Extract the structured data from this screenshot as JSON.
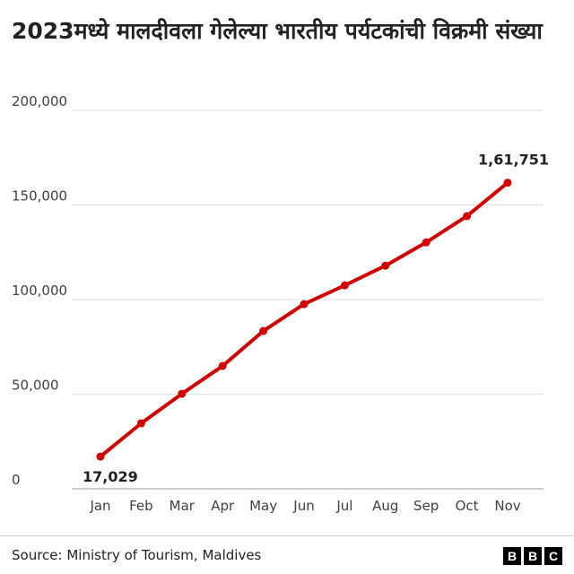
{
  "chart_data": {
    "type": "line",
    "title": "2023मध्ये मालदीवला गेलेल्या भारतीय पर्यटकांची विक्रमी संख्या",
    "categories": [
      "Jan",
      "Feb",
      "Mar",
      "Apr",
      "May",
      "Jun",
      "Jul",
      "Aug",
      "Sep",
      "Oct",
      "Nov"
    ],
    "values": [
      17029,
      34600,
      50200,
      64900,
      83400,
      97600,
      107500,
      117900,
      130200,
      144100,
      161751
    ],
    "ylim": [
      0,
      200000
    ],
    "yticks": [
      0,
      50000,
      100000,
      150000,
      200000
    ],
    "ytick_labels": [
      "0",
      "50,000",
      "100,000",
      "150,000",
      "200,000"
    ],
    "data_labels": [
      {
        "category": "Jan",
        "text": "17,029"
      },
      {
        "category": "Nov",
        "text": "1,61,751"
      }
    ],
    "grid": true,
    "line_color": "#d00000"
  },
  "footer": {
    "source": "Source: Ministry of Tourism, Maldives",
    "logo": "BBC",
    "logo_letters": [
      "B",
      "B",
      "C"
    ]
  }
}
